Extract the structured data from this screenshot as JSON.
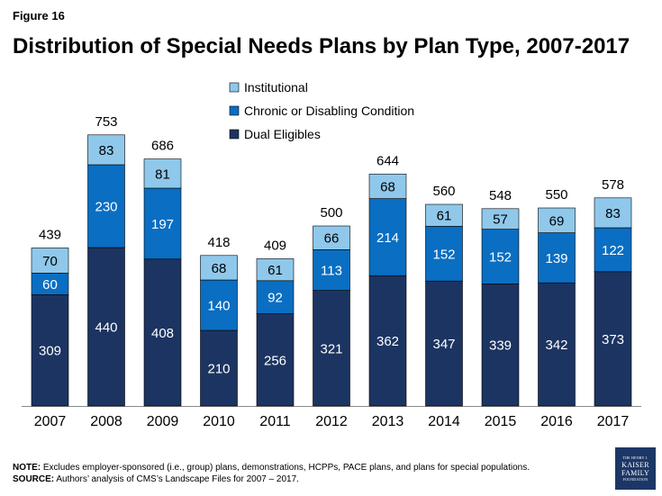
{
  "figure_label": "Figure 16",
  "notes": {
    "note_label": "NOTE:",
    "note_text": "Excludes employer-sponsored (i.e., group) plans, demonstrations, HCPPs, PACE plans, and plans for special populations.",
    "source_label": "SOURCE:",
    "source_text": "Authors’ analysis of CMS’s Landscape Files for 2007 – 2017."
  },
  "logo": {
    "line1": "THE HENRY J.",
    "line2": "KAISER",
    "line3": "FAMILY",
    "line4": "FOUNDATION"
  },
  "chart_data": {
    "type": "bar",
    "stacked": true,
    "title": "Distribution of Special Needs Plans by Plan Type, 2007-2017",
    "xlabel": "",
    "ylabel": "",
    "ylim": [
      0,
      800
    ],
    "grid": false,
    "legend_position": "top-center",
    "categories": [
      "2007",
      "2008",
      "2009",
      "2010",
      "2011",
      "2012",
      "2013",
      "2014",
      "2015",
      "2016",
      "2017"
    ],
    "series": [
      {
        "name": "Dual Eligibles",
        "color": "#1c3461",
        "label_color": "#ffffff",
        "values": [
          309,
          440,
          408,
          210,
          256,
          321,
          362,
          347,
          339,
          342,
          373
        ]
      },
      {
        "name": "Chronic or Disabling Condition",
        "color": "#0a6ec2",
        "label_color": "#ffffff",
        "values": [
          60,
          230,
          197,
          140,
          92,
          113,
          214,
          152,
          152,
          139,
          122
        ]
      },
      {
        "name": "Institutional",
        "color": "#8fc8eb",
        "label_color": "#000000",
        "values": [
          70,
          83,
          81,
          68,
          61,
          66,
          68,
          61,
          57,
          69,
          83
        ]
      }
    ],
    "totals": [
      439,
      753,
      686,
      418,
      409,
      500,
      644,
      560,
      548,
      550,
      578
    ]
  }
}
